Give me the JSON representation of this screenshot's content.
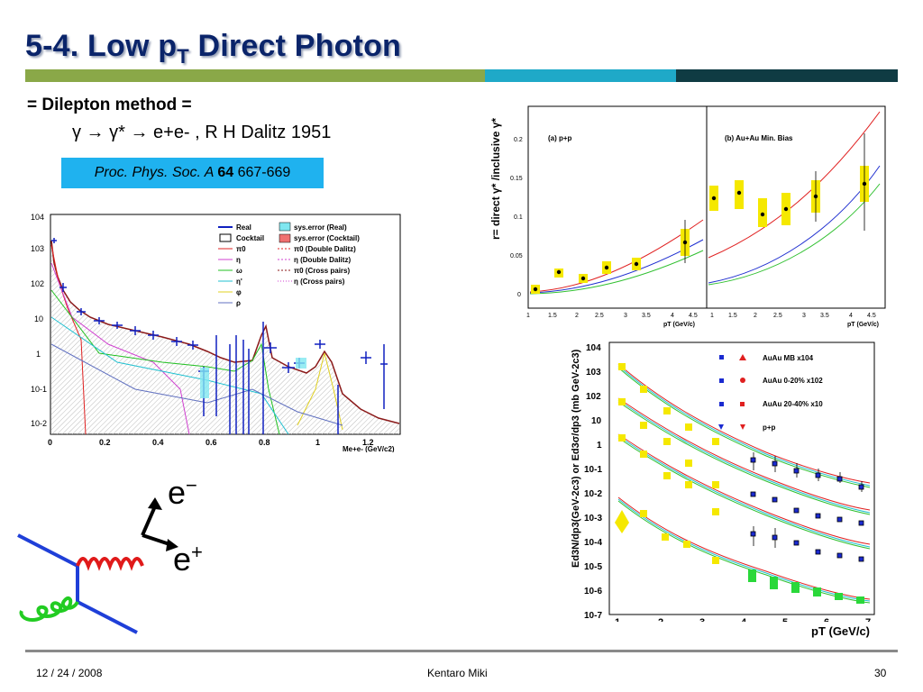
{
  "slide": {
    "title_main": "5-4. Low p",
    "title_sub": "T",
    "title_rest": " Direct Photon",
    "subtitle": "= Dilepton method =",
    "reaction": "γ → γ* → e+e- , R H Dalitz 1951",
    "ref_journal": "Proc. Phys. Soc. A ",
    "ref_volume": "64",
    "ref_pages": " 667-669",
    "colors": {
      "title": "#0a246a",
      "bar_green": "#8aa848",
      "bar_cyan": "#1fa9c8",
      "bar_dark": "#0f3b43",
      "ref_bg": "#1fb2ef"
    }
  },
  "footer": {
    "date": "12 / 24 / 2008",
    "author": "Kentaro Miki",
    "page": "30"
  },
  "mass_plot": {
    "y_ticks": [
      "10-2",
      "10-1",
      "1",
      "10",
      "102",
      "103",
      "104"
    ],
    "x_ticks": [
      "0",
      "0.2",
      "0.4",
      "0.6",
      "0.8",
      "1",
      "1.2"
    ],
    "xlabel": "Me+e- (GeV/c2)",
    "legend_left": [
      "Real",
      "Cocktail",
      "π0",
      "η",
      "ω",
      "η'",
      "φ",
      "ρ"
    ],
    "legend_right": [
      "sys.error (Real)",
      "sys.error (Cocktail)",
      "π0 (Double Dalitz)",
      "η (Double Dalitz)",
      "π0 (Cross pairs)",
      "η (Cross pairs)"
    ]
  },
  "ratio_plot": {
    "ylabel": "r= direct γ* /inclusive γ*",
    "panel_a": "(a) p+p",
    "panel_b": "(b) Au+Au Min. Bias",
    "y_ticks": [
      "0",
      "0.05",
      "0.1",
      "0.15",
      "0.2"
    ],
    "x_ticks_a": [
      "1",
      "1.5",
      "2",
      "2.5",
      "3",
      "3.5",
      "4",
      "4.5"
    ],
    "x_ticks_b": [
      "1",
      "1.5",
      "2",
      "2.5",
      "3",
      "3.5",
      "4",
      "4.5"
    ],
    "xlabel": "pT (GeV/c)"
  },
  "spectrum_plot": {
    "ylabel": "Ed3N/dp3(GeV-2c3) or Ed3σ/dp3 (mb GeV-2c3)",
    "y_ticks": [
      "10-7",
      "10-6",
      "10-5",
      "10-4",
      "10-3",
      "10-2",
      "10-1",
      "1",
      "10",
      "102",
      "103",
      "104"
    ],
    "x_ticks": [
      "1",
      "2",
      "3",
      "4",
      "5",
      "6",
      "7"
    ],
    "xlabel": "pT (GeV/c)",
    "legend": [
      "AuAu MB x104",
      "AuAu 0-20% x102",
      "AuAu 20-40% x10",
      "p+p"
    ]
  },
  "diagram": {
    "e_minus": "e",
    "e_minus_sup": "−",
    "e_plus": "e",
    "e_plus_sup": "+"
  }
}
